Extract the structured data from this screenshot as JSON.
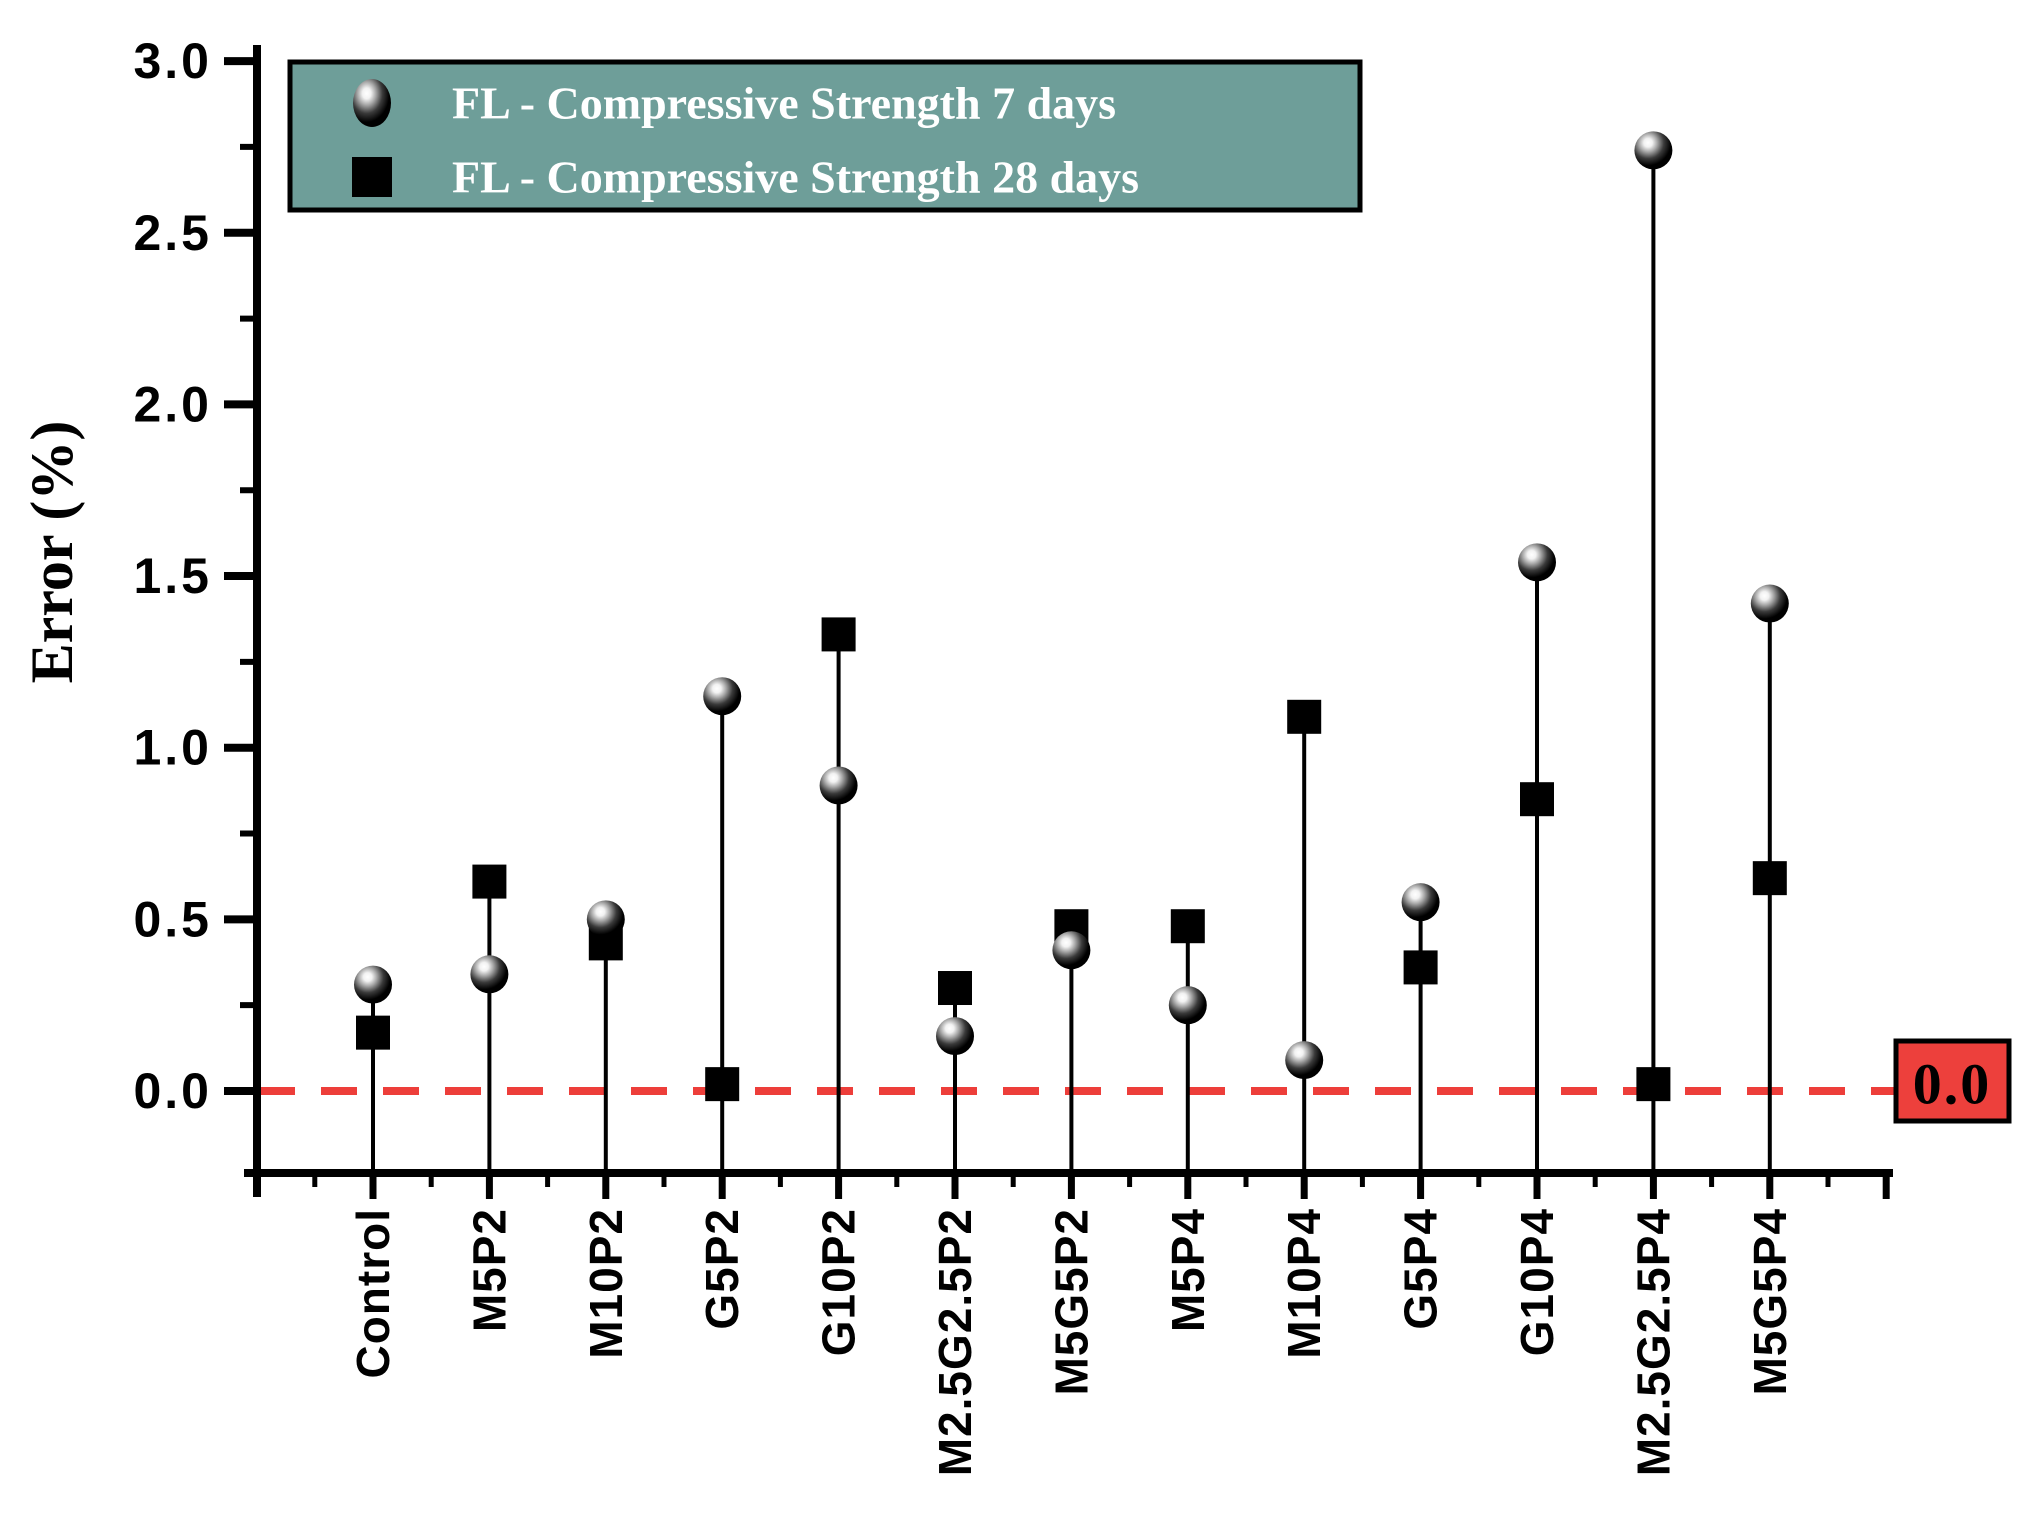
{
  "chart_data": {
    "type": "scatter",
    "title": "",
    "xlabel": "",
    "ylabel": "Error (%)",
    "categories": [
      "Control",
      "M5P2",
      "M10P2",
      "G5P2",
      "G10P2",
      "M2.5G2.5P2",
      "M5G5P2",
      "M5P4",
      "M10P4",
      "G5P4",
      "G10P4",
      "M2.5G2.5P4",
      "M5G5P4"
    ],
    "series": [
      {
        "name": "FL - Compressive Strength 7 days",
        "marker": "sphere-circle",
        "values": [
          0.31,
          0.34,
          0.5,
          1.15,
          0.89,
          0.16,
          0.41,
          0.25,
          0.09,
          0.55,
          1.54,
          2.74,
          1.42
        ]
      },
      {
        "name": "FL - Compressive Strength 28 days",
        "marker": "filled-square",
        "values": [
          0.17,
          0.61,
          0.43,
          0.02,
          1.33,
          0.3,
          0.48,
          0.48,
          1.09,
          0.36,
          0.85,
          0.02,
          0.62
        ]
      }
    ],
    "ylim": [
      -0.24,
      3.05
    ],
    "yticks": [
      0.0,
      0.5,
      1.0,
      1.5,
      2.0,
      2.5,
      3.0
    ],
    "ytick_labels": [
      "0.0",
      "0.5",
      "1.0",
      "1.5",
      "2.0",
      "2.5",
      "3.0"
    ],
    "minor_tick_step": 0.25,
    "grid": false,
    "legend_position": "top-left",
    "reference_line": {
      "value": 0.0,
      "label": "0.0",
      "style": "dashed"
    },
    "stem_baseline": "axis-bottom"
  },
  "colors": {
    "legend_background": "#6E9E99",
    "legend_border": "#000000",
    "legend_text": "#FFFFFF",
    "reference_red": "#ED3E3A",
    "reference_box_fill": "#ED403C",
    "marker_black": "#000000",
    "background": "#FFFFFF"
  }
}
